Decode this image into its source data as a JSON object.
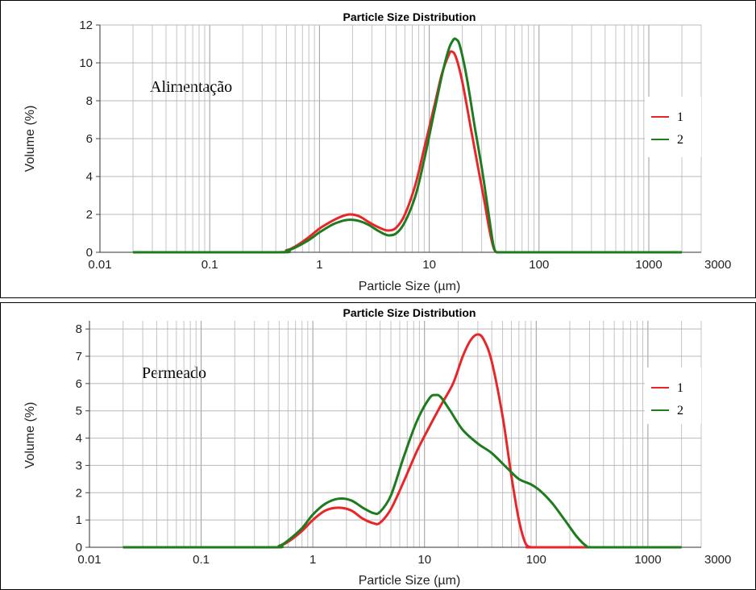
{
  "chart_data": [
    {
      "type": "line",
      "title": "Particle Size Distribution",
      "xlabel": "Particle Size (µm)",
      "ylabel": "Volume (%)",
      "xscale": "log",
      "xlim": [
        0.01,
        3000
      ],
      "ylim": [
        0,
        12
      ],
      "xticks": [
        "0.01",
        "0.1",
        "1",
        "10",
        "100",
        "1000",
        "3000"
      ],
      "yticks": [
        "0",
        "2",
        "4",
        "6",
        "8",
        "10",
        "12"
      ],
      "annotation": "Alimentação",
      "grid": true,
      "legend_position": "right",
      "series": [
        {
          "name": "1",
          "color": "#e8262a",
          "x": [
            0.02,
            0.4,
            0.5,
            0.6,
            0.8,
            1.0,
            1.3,
            1.6,
            1.9,
            2.3,
            2.8,
            3.5,
            4.2,
            5.0,
            6.0,
            7.5,
            9.0,
            11,
            13,
            15,
            16,
            17.5,
            20,
            24,
            28,
            32,
            35,
            38,
            40,
            42,
            50,
            100,
            1000,
            2000
          ],
          "y": [
            0,
            0,
            0.1,
            0.3,
            0.8,
            1.25,
            1.65,
            1.9,
            2.0,
            1.9,
            1.6,
            1.3,
            1.15,
            1.3,
            2.0,
            3.6,
            5.5,
            7.6,
            9.4,
            10.4,
            10.6,
            10.3,
            9.0,
            6.5,
            4.4,
            2.6,
            1.3,
            0.35,
            0.05,
            0,
            0,
            0,
            0,
            0
          ]
        },
        {
          "name": "2",
          "color": "#1e7b1e",
          "x": [
            0.02,
            0.4,
            0.5,
            0.6,
            0.8,
            1.0,
            1.3,
            1.6,
            1.9,
            2.3,
            2.8,
            3.5,
            4.2,
            5.0,
            6.0,
            7.5,
            9.0,
            11,
            13,
            15,
            16.5,
            17.5,
            19,
            22,
            26,
            30,
            34,
            38,
            40,
            42,
            50,
            100,
            1000,
            2000
          ],
          "y": [
            0,
            0,
            0.08,
            0.25,
            0.65,
            1.05,
            1.45,
            1.65,
            1.72,
            1.65,
            1.45,
            1.1,
            0.9,
            1.0,
            1.6,
            3.0,
            4.9,
            7.3,
            9.3,
            10.7,
            11.2,
            11.25,
            10.9,
            9.2,
            6.6,
            4.5,
            2.4,
            0.5,
            0.05,
            0,
            0,
            0,
            0,
            0
          ]
        }
      ]
    },
    {
      "type": "line",
      "title": "Particle Size Distribution",
      "xlabel": "Particle Size (µm)",
      "ylabel": "Volume (%)",
      "xscale": "log",
      "xlim": [
        0.01,
        3000
      ],
      "ylim": [
        0,
        8.3
      ],
      "xticks": [
        "0.01",
        "0.1",
        "1",
        "10",
        "100",
        "1000",
        "3000"
      ],
      "yticks": [
        "0",
        "1",
        "2",
        "3",
        "4",
        "5",
        "6",
        "7",
        "8"
      ],
      "annotation": "Permeado",
      "grid": true,
      "legend_position": "right",
      "series": [
        {
          "name": "1",
          "color": "#e8262a",
          "x": [
            0.02,
            0.4,
            0.5,
            0.6,
            0.8,
            1.0,
            1.3,
            1.7,
            2.2,
            2.8,
            3.5,
            4.0,
            5.0,
            6.5,
            8.5,
            11,
            14,
            18,
            22,
            26,
            30,
            34,
            40,
            50,
            60,
            70,
            80,
            90,
            100,
            1000,
            2000
          ],
          "y": [
            0,
            0,
            0.05,
            0.2,
            0.6,
            1.0,
            1.35,
            1.45,
            1.35,
            1.05,
            0.88,
            0.9,
            1.4,
            2.4,
            3.5,
            4.4,
            5.2,
            6.0,
            7.0,
            7.6,
            7.8,
            7.6,
            6.8,
            4.8,
            2.6,
            1.0,
            0.15,
            0,
            0,
            0,
            0
          ]
        },
        {
          "name": "2",
          "color": "#1e7b1e",
          "x": [
            0.02,
            0.4,
            0.5,
            0.6,
            0.8,
            1.0,
            1.3,
            1.7,
            2.2,
            2.8,
            3.5,
            4.0,
            5.0,
            6.5,
            8.5,
            11,
            12.5,
            14,
            17,
            22,
            30,
            40,
            55,
            70,
            90,
            110,
            140,
            180,
            230,
            280,
            320,
            1000,
            2000
          ],
          "y": [
            0,
            0,
            0.05,
            0.25,
            0.7,
            1.2,
            1.6,
            1.78,
            1.72,
            1.45,
            1.25,
            1.3,
            1.9,
            3.3,
            4.6,
            5.45,
            5.58,
            5.5,
            5.0,
            4.3,
            3.8,
            3.45,
            2.9,
            2.5,
            2.3,
            2.05,
            1.6,
            1.0,
            0.4,
            0.05,
            0,
            0,
            0
          ]
        }
      ]
    }
  ]
}
